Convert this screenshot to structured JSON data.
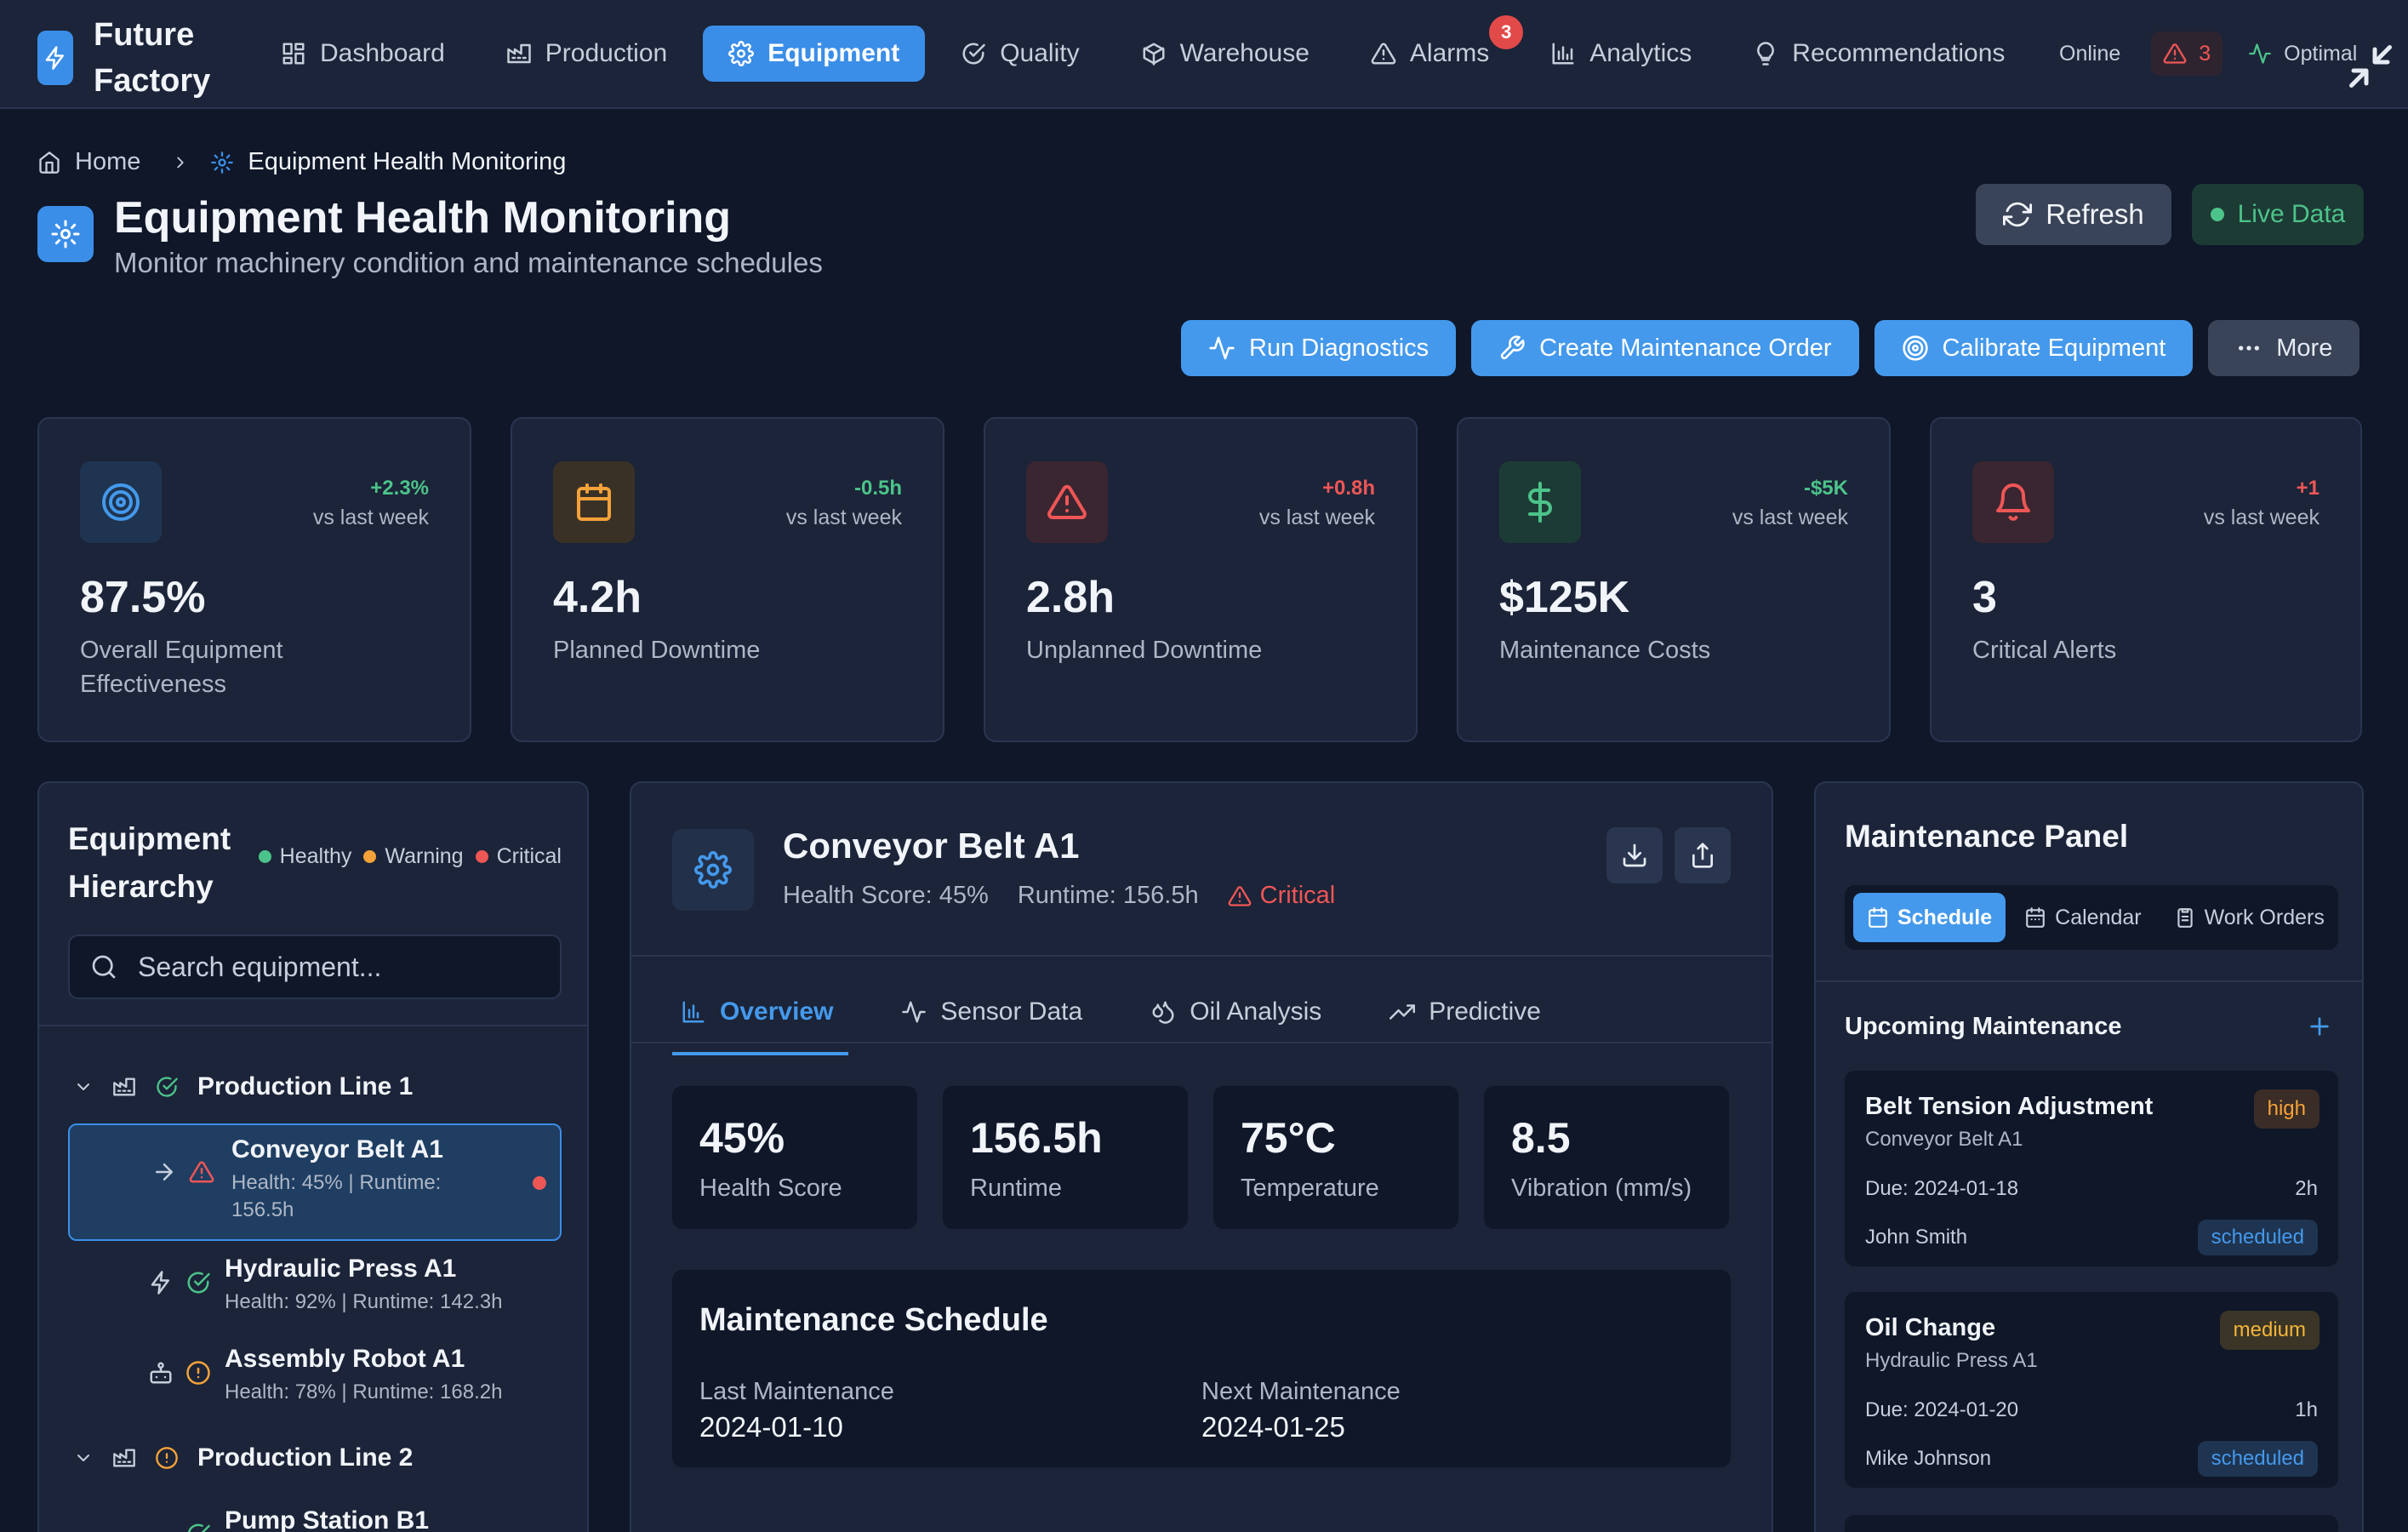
{
  "brand": {
    "name": "Future Factory"
  },
  "nav": {
    "items": [
      {
        "label": "Dashboard",
        "icon": "grid-icon"
      },
      {
        "label": "Production",
        "icon": "factory-icon"
      },
      {
        "label": "Equipment",
        "icon": "gear-icon",
        "active": true
      },
      {
        "label": "Quality",
        "icon": "check-circle-icon"
      },
      {
        "label": "Warehouse",
        "icon": "package-icon"
      },
      {
        "label": "Alarms",
        "icon": "warning-icon",
        "badge": "3"
      },
      {
        "label": "Analytics",
        "icon": "bar-chart-icon"
      },
      {
        "label": "Recommendations",
        "icon": "lightbulb-icon"
      }
    ],
    "status": {
      "online": "Online",
      "alarm_count": "3",
      "optimal": "Optimal"
    }
  },
  "breadcrumb": {
    "home": "Home",
    "current": "Equipment Health Monitoring"
  },
  "header": {
    "title": "Equipment Health Monitoring",
    "subtitle": "Monitor machinery condition and maintenance schedules",
    "refresh": "Refresh",
    "live": "Live Data"
  },
  "actions": {
    "run_diagnostics": "Run Diagnostics",
    "create_order": "Create Maintenance Order",
    "calibrate": "Calibrate Equipment",
    "more": "More"
  },
  "kpis": [
    {
      "value": "87.5%",
      "label": "Overall Equipment Effectiveness",
      "delta": "+2.3%",
      "vs": "vs last week",
      "color": "#4499ec"
    },
    {
      "value": "4.2h",
      "label": "Planned Downtime",
      "delta": "-0.5h",
      "vs": "vs last week",
      "color": "#f5a23a"
    },
    {
      "value": "2.8h",
      "label": "Unplanned Downtime",
      "delta": "+0.8h",
      "vs": "vs last week",
      "color": "#ef5656"
    },
    {
      "value": "$125K",
      "label": "Maintenance Costs",
      "delta": "-$5K",
      "vs": "vs last week",
      "color": "#4cc38a"
    },
    {
      "value": "3",
      "label": "Critical Alerts",
      "delta": "+1",
      "vs": "vs last week",
      "color": "#ef5656"
    }
  ],
  "hierarchy": {
    "title": "Equipment Hierarchy",
    "legend": {
      "healthy": "Healthy",
      "warning": "Warning",
      "critical": "Critical"
    },
    "search_placeholder": "Search equipment...",
    "lines": [
      {
        "name": "Production Line 1"
      },
      {
        "name": "Production Line 2"
      }
    ],
    "items": [
      {
        "name": "Conveyor Belt A1",
        "meta_a": "Health: 45% | Runtime:",
        "meta_b": "156.5h"
      },
      {
        "name": "Hydraulic Press A1",
        "meta": "Health: 92% | Runtime: 142.3h"
      },
      {
        "name": "Assembly Robot A1",
        "meta": "Health: 78% | Runtime: 168.2h"
      },
      {
        "name": "Pump Station B1"
      }
    ]
  },
  "detail": {
    "name": "Conveyor Belt A1",
    "health": "Health Score: 45%",
    "runtime": "Runtime: 156.5h",
    "status": "Critical",
    "tabs": [
      "Overview",
      "Sensor Data",
      "Oil Analysis",
      "Predictive"
    ],
    "stats": [
      {
        "value": "45%",
        "label": "Health Score"
      },
      {
        "value": "156.5h",
        "label": "Runtime"
      },
      {
        "value": "75°C",
        "label": "Temperature"
      },
      {
        "value": "8.5",
        "label": "Vibration (mm/s)"
      }
    ],
    "schedule": {
      "title": "Maintenance Schedule",
      "last_label": "Last Maintenance",
      "last_date": "2024-01-10",
      "next_label": "Next Maintenance",
      "next_date": "2024-01-25"
    }
  },
  "maintenance": {
    "title": "Maintenance Panel",
    "tabs": [
      "Schedule",
      "Calendar",
      "Work Orders"
    ],
    "upcoming": "Upcoming Maintenance",
    "tasks": [
      {
        "title": "Belt Tension Adjustment",
        "equipment": "Conveyor Belt A1",
        "priority": "high",
        "due": "Due: 2024-01-18",
        "duration": "2h",
        "assignee": "John Smith",
        "status": "scheduled"
      },
      {
        "title": "Oil Change",
        "equipment": "Hydraulic Press A1",
        "priority": "medium",
        "due": "Due: 2024-01-20",
        "duration": "1h",
        "assignee": "Mike Johnson",
        "status": "scheduled"
      }
    ]
  }
}
